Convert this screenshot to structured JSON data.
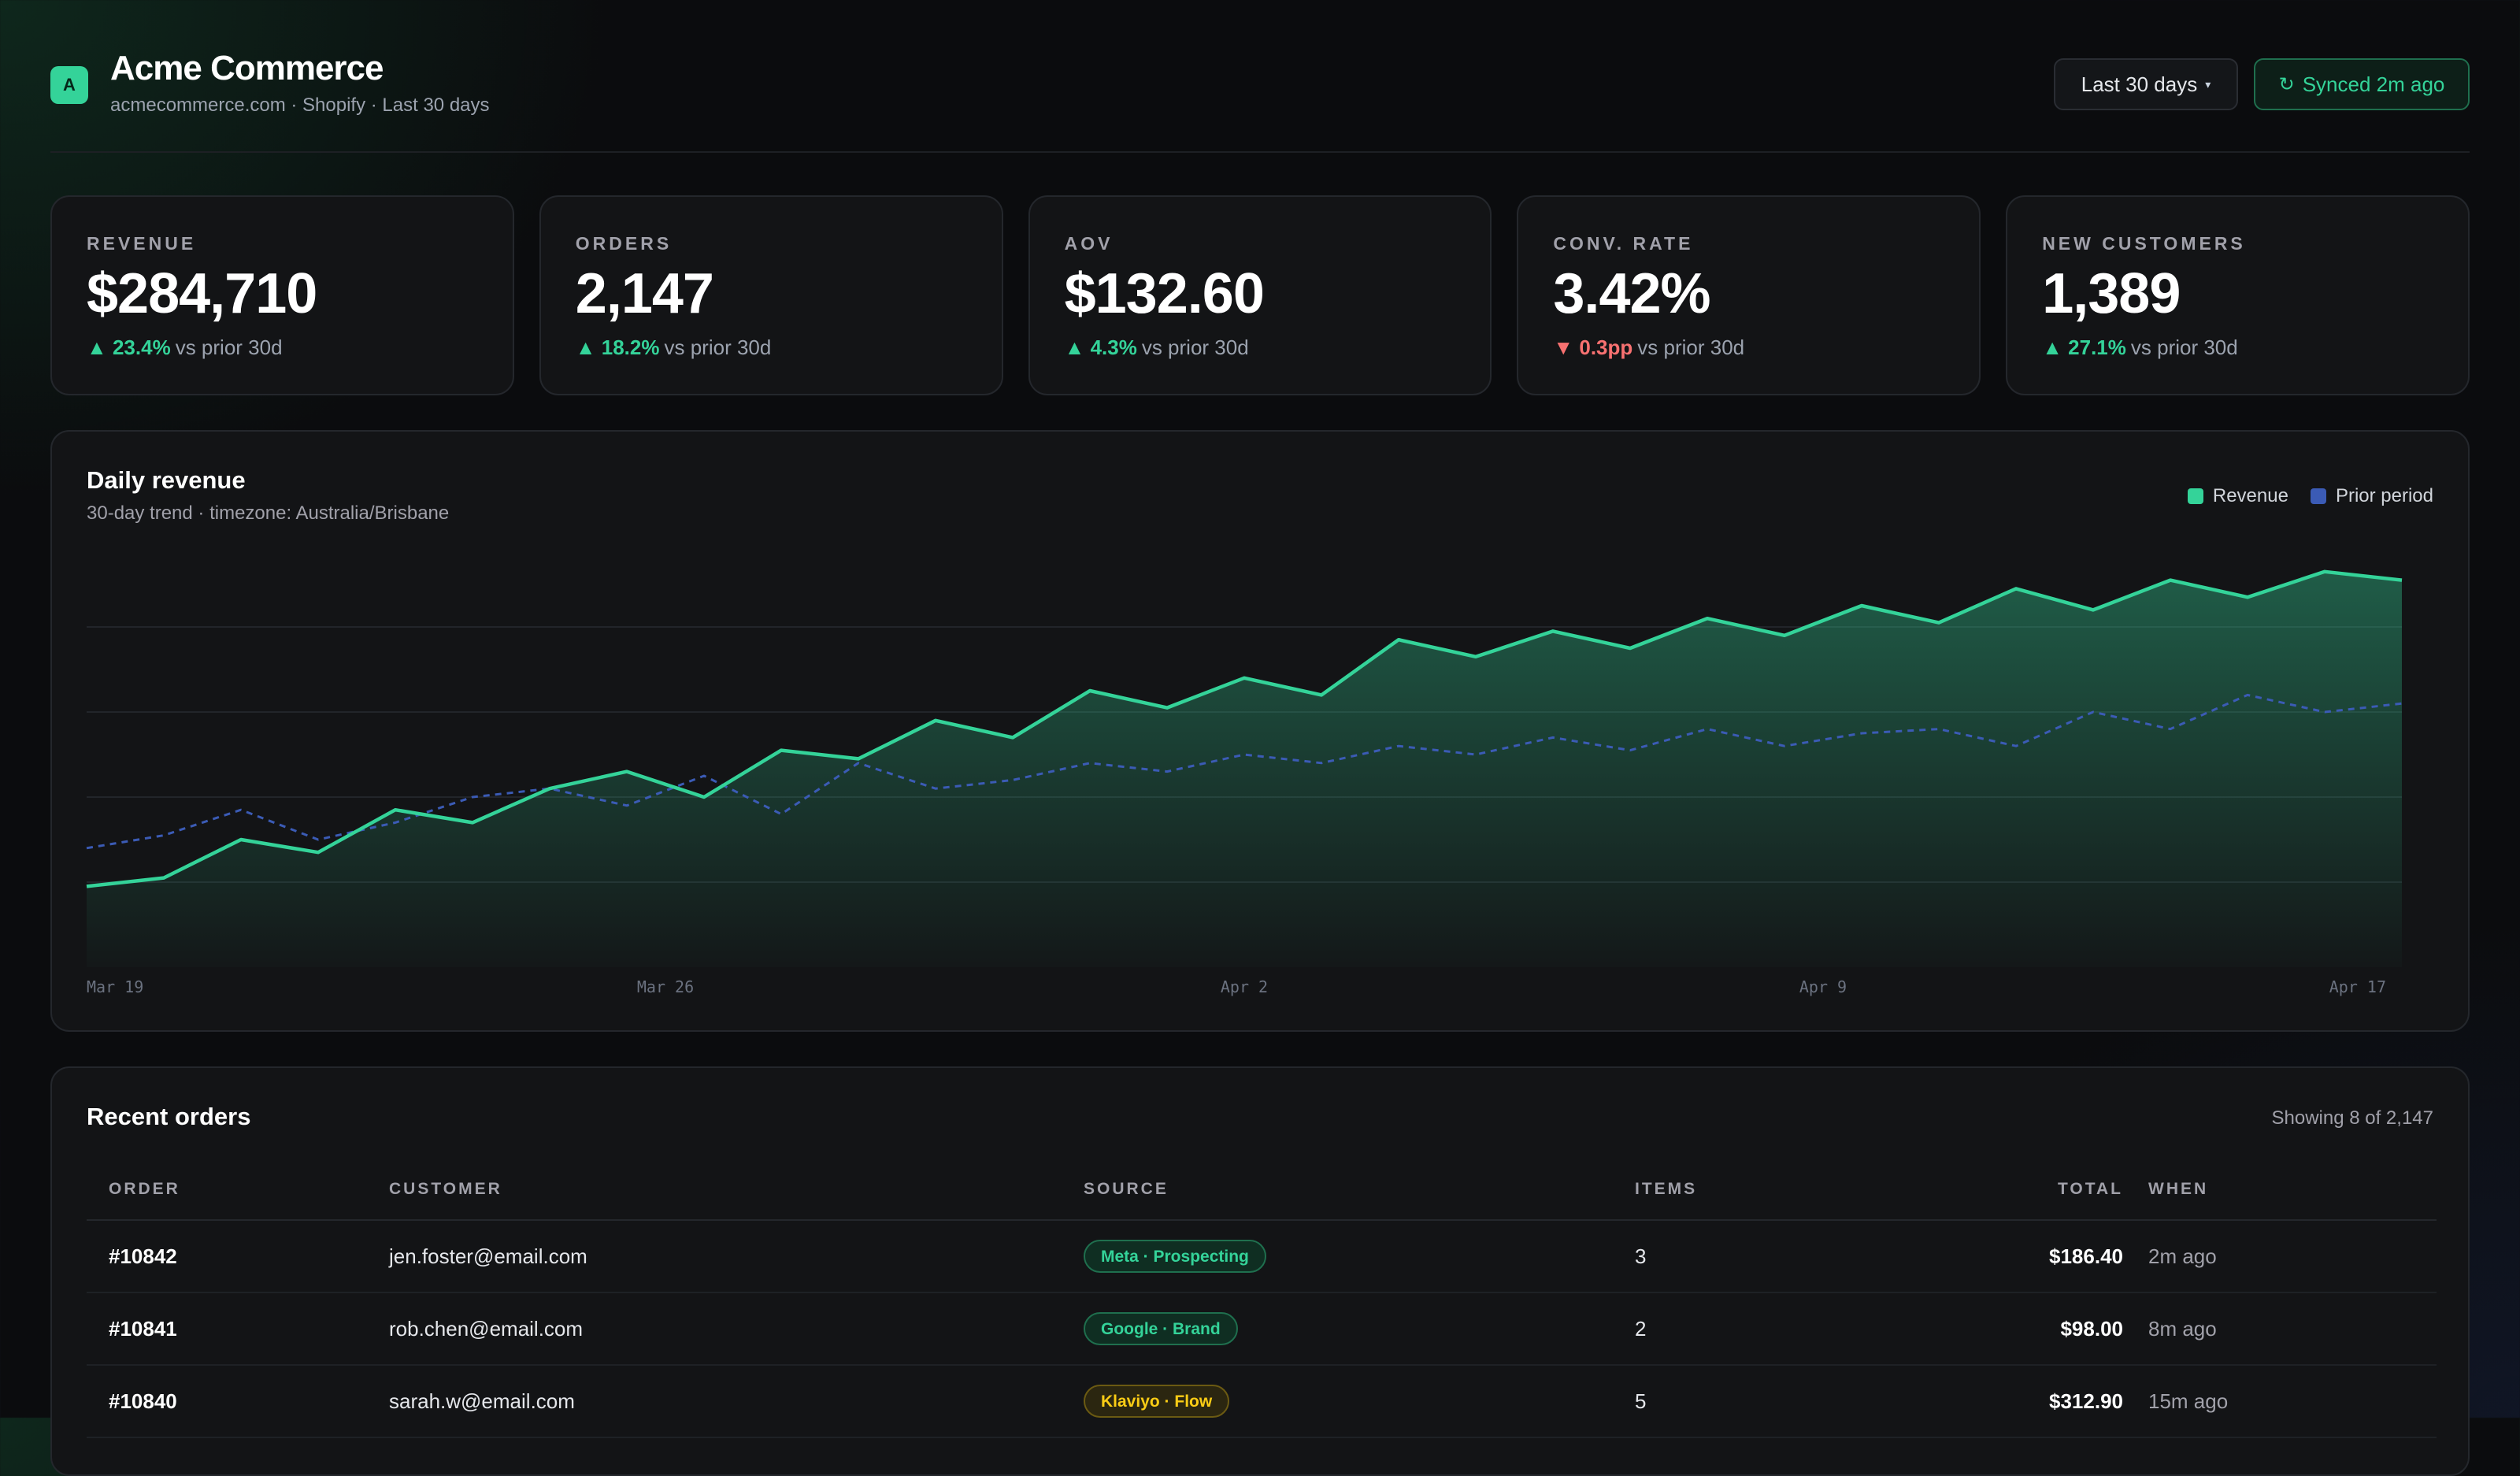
{
  "header": {
    "logo_letter": "A",
    "title": "Acme Commerce",
    "subtitle": "acmecommerce.com · Shopify · Last 30 days",
    "range_button": "Last 30 days",
    "sync_button": "Synced 2m ago",
    "icons": {
      "caret": "chevron-down-icon",
      "sync": "refresh-icon"
    }
  },
  "kpis": [
    {
      "label": "REVENUE",
      "value": "$284,710",
      "change": "23.4%",
      "direction": "up",
      "comparison": "vs prior 30d"
    },
    {
      "label": "ORDERS",
      "value": "2,147",
      "change": "18.2%",
      "direction": "up",
      "comparison": "vs prior 30d"
    },
    {
      "label": "AOV",
      "value": "$132.60",
      "change": "4.3%",
      "direction": "up",
      "comparison": "vs prior 30d"
    },
    {
      "label": "CONV. RATE",
      "value": "3.42%",
      "change": "0.3pp",
      "direction": "down",
      "comparison": "vs prior 30d"
    },
    {
      "label": "NEW CUSTOMERS",
      "value": "1,389",
      "change": "27.1%",
      "direction": "up",
      "comparison": "vs prior 30d"
    }
  ],
  "colors": {
    "accent": "#34d399",
    "prior": "#3b5bb5",
    "negative": "#f87171",
    "warning": "#facc15"
  },
  "chart_data": {
    "type": "area",
    "title": "Daily revenue",
    "subtitle": "30-day trend · timezone: Australia/Brisbane",
    "xlabel": "",
    "ylabel": "",
    "legend_position": "top-right",
    "grid": true,
    "tick_labels": [
      "Mar 19",
      "Mar 26",
      "Apr 2",
      "Apr 9",
      "Apr 17"
    ],
    "ylim": [
      0,
      100
    ],
    "series": [
      {
        "name": "Revenue",
        "style": "solid-area",
        "values": [
          19,
          21,
          30,
          27,
          37,
          34,
          42,
          46,
          40,
          51,
          49,
          58,
          54,
          65,
          61,
          68,
          64,
          77,
          73,
          79,
          75,
          82,
          78,
          85,
          81,
          89,
          84,
          91,
          87,
          93,
          91
        ]
      },
      {
        "name": "Prior period",
        "style": "dashed",
        "values": [
          28,
          31,
          37,
          30,
          34,
          40,
          42,
          38,
          45,
          36,
          48,
          42,
          44,
          48,
          46,
          50,
          48,
          52,
          50,
          54,
          51,
          56,
          52,
          55,
          56,
          52,
          60,
          56,
          64,
          60,
          62
        ]
      }
    ]
  },
  "orders": {
    "title": "Recent orders",
    "count_text": "Showing 8 of 2,147",
    "columns": [
      "ORDER",
      "CUSTOMER",
      "SOURCE",
      "ITEMS",
      "TOTAL",
      "WHEN"
    ],
    "rows": [
      {
        "order": "#10842",
        "customer": "jen.foster@email.com",
        "source": "Meta · Prospecting",
        "source_color": "green",
        "items": "3",
        "total": "$186.40",
        "when": "2m ago"
      },
      {
        "order": "#10841",
        "customer": "rob.chen@email.com",
        "source": "Google · Brand",
        "source_color": "green",
        "items": "2",
        "total": "$98.00",
        "when": "8m ago"
      },
      {
        "order": "#10840",
        "customer": "sarah.w@email.com",
        "source": "Klaviyo · Flow",
        "source_color": "yellow",
        "items": "5",
        "total": "$312.90",
        "when": "15m ago"
      }
    ]
  }
}
